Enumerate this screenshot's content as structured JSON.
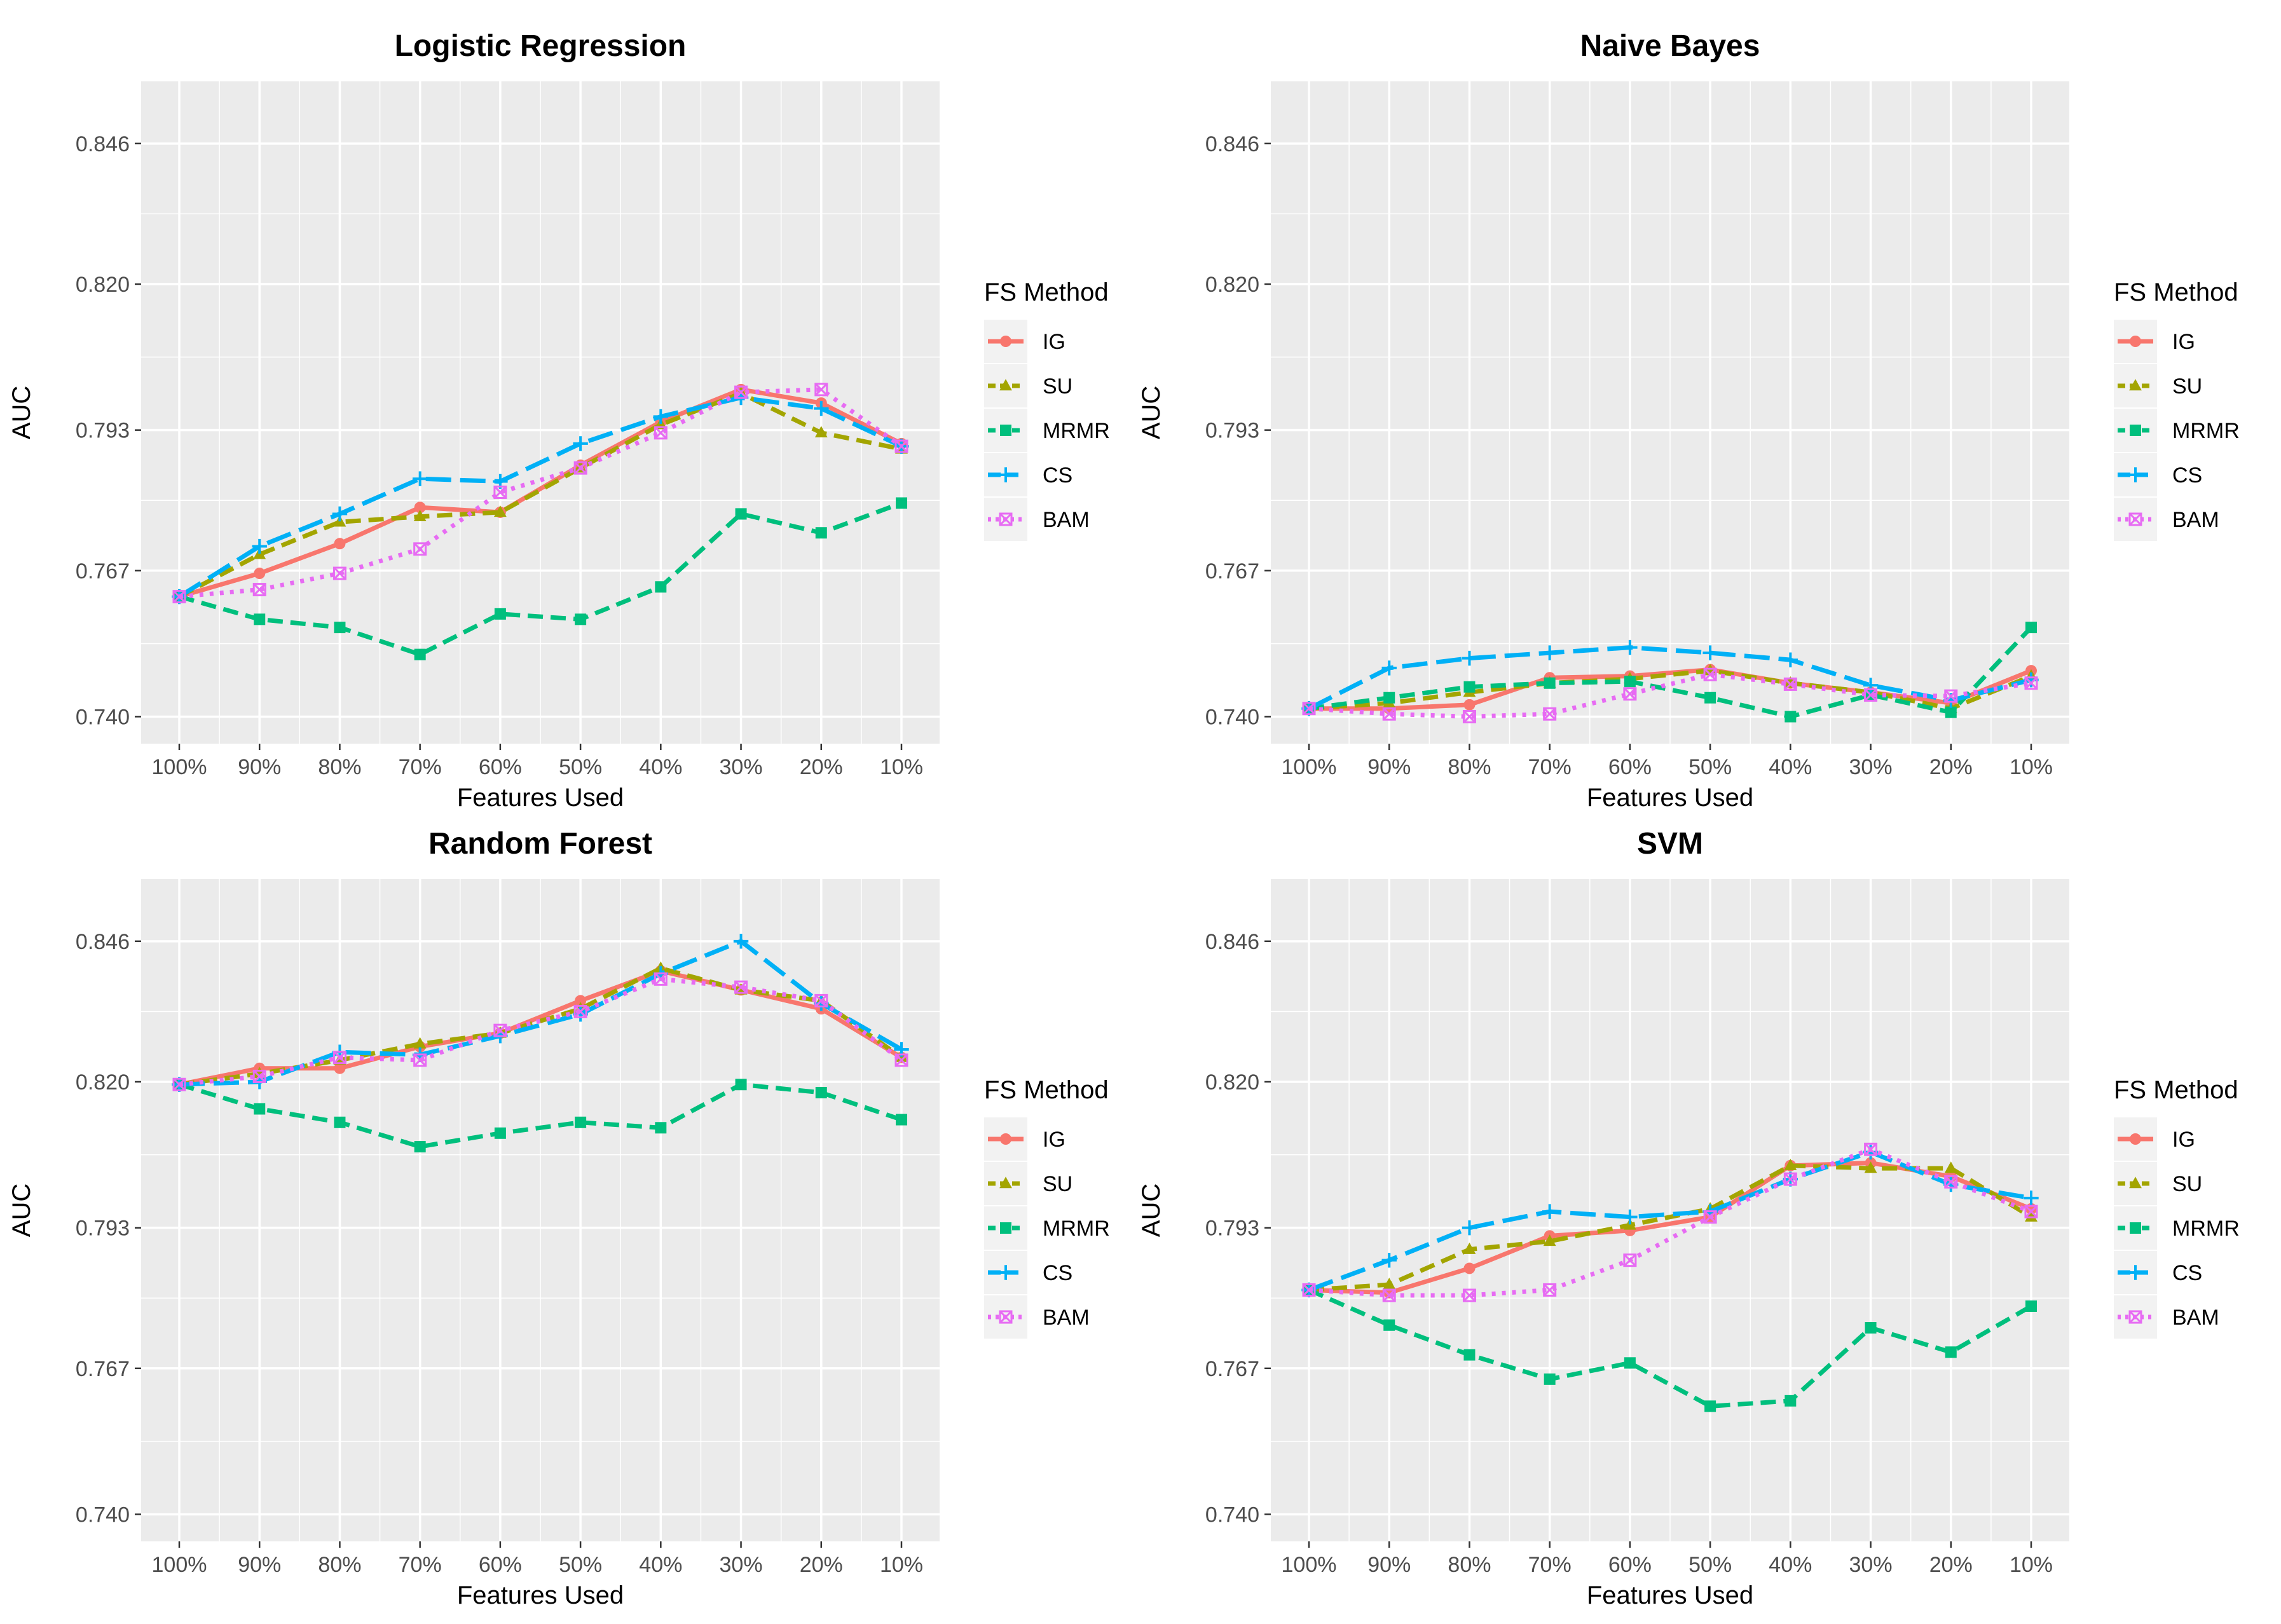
{
  "chart_data": [
    {
      "type": "line",
      "title": "Logistic Regression",
      "xlabel": "Features Used",
      "ylabel": "AUC",
      "categories": [
        "100%",
        "90%",
        "80%",
        "70%",
        "60%",
        "50%",
        "40%",
        "30%",
        "20%",
        "10%"
      ],
      "yticks": [
        "0.740",
        "0.767",
        "0.793",
        "0.820",
        "0.846"
      ],
      "ylim": [
        0.735,
        0.8575
      ],
      "legend_title": "FS Method",
      "series": [
        {
          "name": "IG",
          "values": [
            0.7622,
            0.7665,
            0.772,
            0.7787,
            0.7778,
            0.7865,
            0.7945,
            0.8005,
            0.798,
            0.7905
          ]
        },
        {
          "name": "SU",
          "values": [
            0.7622,
            0.77,
            0.776,
            0.777,
            0.7778,
            0.786,
            0.794,
            0.7998,
            0.7925,
            0.7895
          ]
        },
        {
          "name": "MRMR",
          "values": [
            0.7622,
            0.758,
            0.7565,
            0.7515,
            0.759,
            0.758,
            0.764,
            0.7775,
            0.774,
            0.7795
          ]
        },
        {
          "name": "CS",
          "values": [
            0.7622,
            0.7715,
            0.7775,
            0.784,
            0.7835,
            0.7905,
            0.7955,
            0.799,
            0.797,
            0.79
          ]
        },
        {
          "name": "BAM",
          "values": [
            0.7622,
            0.7635,
            0.7665,
            0.771,
            0.7815,
            0.786,
            0.7925,
            0.8,
            0.8005,
            0.79
          ]
        }
      ]
    },
    {
      "type": "line",
      "title": "Naive Bayes",
      "xlabel": "Features Used",
      "ylabel": "AUC",
      "categories": [
        "100%",
        "90%",
        "80%",
        "70%",
        "60%",
        "50%",
        "40%",
        "30%",
        "20%",
        "10%"
      ],
      "yticks": [
        "0.740",
        "0.767",
        "0.793",
        "0.820",
        "0.846"
      ],
      "ylim": [
        0.735,
        0.8575
      ],
      "legend_title": "FS Method",
      "series": [
        {
          "name": "IG",
          "values": [
            0.7415,
            0.7415,
            0.7422,
            0.7472,
            0.7475,
            0.7487,
            0.7462,
            0.7445,
            0.7425,
            0.7485
          ]
        },
        {
          "name": "SU",
          "values": [
            0.7415,
            0.7425,
            0.7445,
            0.7462,
            0.747,
            0.7485,
            0.7462,
            0.7445,
            0.7415,
            0.7475
          ]
        },
        {
          "name": "MRMR",
          "values": [
            0.7415,
            0.7435,
            0.7455,
            0.7462,
            0.7465,
            0.7435,
            0.74,
            0.744,
            0.7408,
            0.7565
          ]
        },
        {
          "name": "CS",
          "values": [
            0.7415,
            0.749,
            0.7508,
            0.7518,
            0.7528,
            0.7518,
            0.7505,
            0.7458,
            0.743,
            0.7468
          ]
        },
        {
          "name": "BAM",
          "values": [
            0.7415,
            0.7405,
            0.74,
            0.7405,
            0.7442,
            0.7478,
            0.746,
            0.744,
            0.7438,
            0.7462
          ]
        }
      ]
    },
    {
      "type": "line",
      "title": "Random Forest",
      "xlabel": "Features Used",
      "ylabel": "AUC",
      "categories": [
        "100%",
        "90%",
        "80%",
        "70%",
        "60%",
        "50%",
        "40%",
        "30%",
        "20%",
        "10%"
      ],
      "yticks": [
        "0.740",
        "0.767",
        "0.793",
        "0.820",
        "0.846"
      ],
      "ylim": [
        0.735,
        0.8575
      ],
      "legend_title": "FS Method",
      "series": [
        {
          "name": "IG",
          "values": [
            0.8195,
            0.8225,
            0.8225,
            0.8265,
            0.829,
            0.835,
            0.8405,
            0.837,
            0.8335,
            0.8245
          ]
        },
        {
          "name": "SU",
          "values": [
            0.8195,
            0.8215,
            0.824,
            0.827,
            0.829,
            0.8335,
            0.841,
            0.837,
            0.835,
            0.8245
          ]
        },
        {
          "name": "MRMR",
          "values": [
            0.8195,
            0.815,
            0.8125,
            0.808,
            0.8105,
            0.8125,
            0.8115,
            0.8195,
            0.818,
            0.813
          ]
        },
        {
          "name": "CS",
          "values": [
            0.8195,
            0.82,
            0.8255,
            0.825,
            0.8285,
            0.8325,
            0.84,
            0.846,
            0.8345,
            0.826
          ]
        },
        {
          "name": "BAM",
          "values": [
            0.8195,
            0.821,
            0.8245,
            0.824,
            0.8295,
            0.833,
            0.839,
            0.8375,
            0.835,
            0.824
          ]
        }
      ]
    },
    {
      "type": "line",
      "title": "SVM",
      "xlabel": "Features Used",
      "ylabel": "AUC",
      "categories": [
        "100%",
        "90%",
        "80%",
        "70%",
        "60%",
        "50%",
        "40%",
        "30%",
        "20%",
        "10%"
      ],
      "yticks": [
        "0.740",
        "0.767",
        "0.793",
        "0.820",
        "0.846"
      ],
      "ylim": [
        0.735,
        0.8575
      ],
      "legend_title": "FS Method",
      "series": [
        {
          "name": "IG",
          "values": [
            0.7815,
            0.781,
            0.7855,
            0.7915,
            0.7925,
            0.795,
            0.8045,
            0.805,
            0.8025,
            0.7965
          ]
        },
        {
          "name": "SU",
          "values": [
            0.7815,
            0.7825,
            0.789,
            0.7905,
            0.7935,
            0.7965,
            0.8045,
            0.804,
            0.804,
            0.795
          ]
        },
        {
          "name": "MRMR",
          "values": [
            0.7815,
            0.775,
            0.7695,
            0.765,
            0.768,
            0.76,
            0.761,
            0.7745,
            0.77,
            0.7785
          ]
        },
        {
          "name": "CS",
          "values": [
            0.7815,
            0.787,
            0.793,
            0.796,
            0.795,
            0.796,
            0.802,
            0.807,
            0.801,
            0.7985
          ]
        },
        {
          "name": "BAM",
          "values": [
            0.7815,
            0.7805,
            0.7805,
            0.7815,
            0.787,
            0.795,
            0.802,
            0.8075,
            0.8015,
            0.796
          ]
        }
      ]
    }
  ],
  "styles": {
    "panel_bg": "#ebebeb",
    "grid_color": "#ffffff",
    "series_colors": {
      "IG": "#F8766D",
      "SU": "#A3A500",
      "MRMR": "#00BF7D",
      "CS": "#00B0F6",
      "BAM": "#E76BF3"
    },
    "series_dash": {
      "IG": "solid",
      "SU": "dashed",
      "MRMR": "dashed",
      "CS": "longdash",
      "BAM": "dotted"
    },
    "series_marker": {
      "IG": "circle",
      "SU": "triangle",
      "MRMR": "square",
      "CS": "plus",
      "BAM": "boxed-x"
    }
  }
}
